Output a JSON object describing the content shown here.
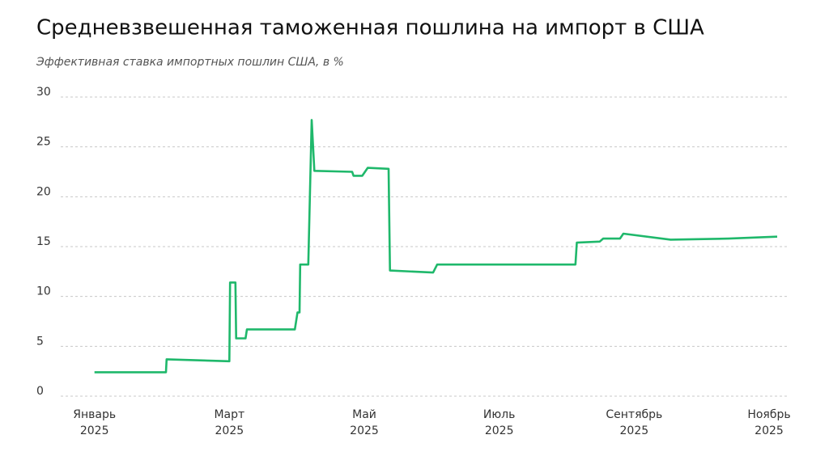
{
  "chart_data": {
    "type": "line",
    "title": "Средневзвешенная таможенная пошлина на импорт в США",
    "subtitle": "Эффективная ставка импортных пошлин США, в %",
    "x": [
      0,
      1.06,
      1.07,
      2.0,
      2.01,
      2.09,
      2.1,
      2.24,
      2.26,
      2.97,
      3.01,
      3.04,
      3.05,
      3.17,
      3.22,
      3.26,
      3.82,
      3.84,
      3.97,
      4.05,
      4.36,
      4.38,
      5.02,
      5.08,
      7.13,
      7.15,
      7.49,
      7.54,
      7.79,
      7.84,
      8.54,
      9.4,
      10.12
    ],
    "series": [
      {
        "name": "Эффективная ставка",
        "color": "#1fb86b",
        "values": [
          2.4,
          2.4,
          3.7,
          3.5,
          11.4,
          11.4,
          5.8,
          5.8,
          6.7,
          6.7,
          8.4,
          8.4,
          13.2,
          13.2,
          27.7,
          22.6,
          22.5,
          22.1,
          22.1,
          22.9,
          22.8,
          12.6,
          12.4,
          13.2,
          13.2,
          15.4,
          15.5,
          15.8,
          15.8,
          16.3,
          15.7,
          15.8,
          16.0
        ]
      }
    ],
    "xlim": [
      -0.5,
      10.3
    ],
    "xticks": [
      {
        "value": 0,
        "label": "Январь 2025"
      },
      {
        "value": 2,
        "label": "Март 2025"
      },
      {
        "value": 4,
        "label": "Май 2025"
      },
      {
        "value": 6,
        "label": "Июль 2025"
      },
      {
        "value": 8,
        "label": "Сентябрь 2025"
      },
      {
        "value": 10,
        "label": "Ноябрь 2025"
      }
    ],
    "ylim": [
      0,
      30
    ],
    "yticks": [
      0,
      5,
      10,
      15,
      20,
      25,
      30
    ],
    "grid": true
  }
}
